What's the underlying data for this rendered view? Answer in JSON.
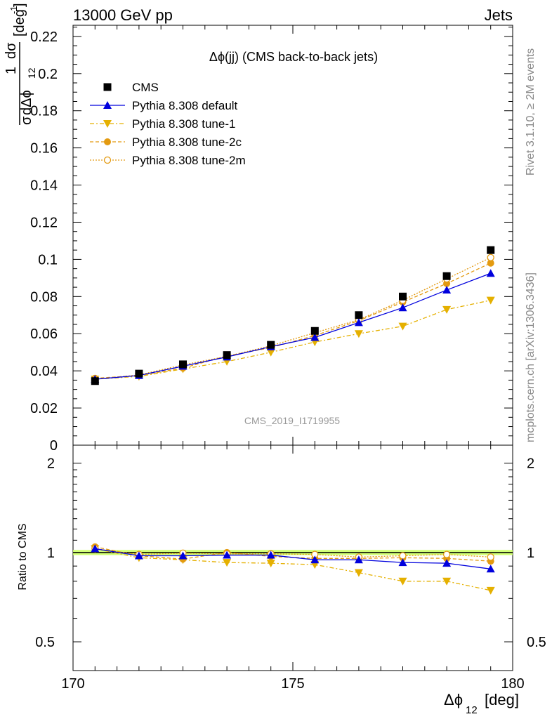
{
  "header": {
    "left": "13000 GeV pp",
    "right": "Jets"
  },
  "side_labels": {
    "rivet": "Rivet 3.1.10, ≥ 2M events",
    "mcplots": "mcplots.cern.ch [arXiv:1306.3436]"
  },
  "watermark": "CMS_2019_I1719955",
  "chart_data": [
    {
      "type": "line",
      "title": "Δϕ(jj) (CMS back-to-back jets)",
      "ylabel": {
        "frac_num": "1",
        "frac_num2": "dσ",
        "frac_den": "σ",
        "frac_den2": "dΔϕ",
        "frac_den_sub": "12",
        "unit": "[deg",
        "unit_sup": "-1",
        "unit_close": "]"
      },
      "xlim": [
        170,
        180
      ],
      "ylim": [
        0,
        0.226
      ],
      "yticks": [
        {
          "v": 0,
          "label": "0"
        },
        {
          "v": 0.02,
          "label": "0.02"
        },
        {
          "v": 0.04,
          "label": "0.04"
        },
        {
          "v": 0.06,
          "label": "0.06"
        },
        {
          "v": 0.08,
          "label": "0.08"
        },
        {
          "v": 0.1,
          "label": "0.1"
        },
        {
          "v": 0.12,
          "label": "0.12"
        },
        {
          "v": 0.14,
          "label": "0.14"
        },
        {
          "v": 0.16,
          "label": "0.16"
        },
        {
          "v": 0.18,
          "label": "0.18"
        },
        {
          "v": 0.2,
          "label": "0.2"
        },
        {
          "v": 0.22,
          "label": "0.22"
        }
      ],
      "x": [
        170.5,
        171.5,
        172.5,
        173.5,
        174.5,
        175.5,
        176.5,
        177.5,
        178.5,
        179.5
      ],
      "series": [
        {
          "name": "CMS",
          "key": "cms",
          "values": [
            0.0345,
            0.0385,
            0.0435,
            0.0485,
            0.054,
            0.0615,
            0.07,
            0.08,
            0.091,
            0.105
          ]
        },
        {
          "name": "Pythia 8.308 default",
          "key": "default",
          "values": [
            0.0355,
            0.0375,
            0.0425,
            0.0475,
            0.053,
            0.058,
            0.066,
            0.074,
            0.0835,
            0.0925
          ]
        },
        {
          "name": "Pythia 8.308 tune-1",
          "key": "tune1",
          "values": [
            0.0355,
            0.037,
            0.041,
            0.045,
            0.05,
            0.0555,
            0.06,
            0.064,
            0.073,
            0.078
          ]
        },
        {
          "name": "Pythia 8.308 tune-2c",
          "key": "tune2c",
          "values": [
            0.036,
            0.0375,
            0.0415,
            0.048,
            0.0525,
            0.059,
            0.067,
            0.077,
            0.087,
            0.098
          ]
        },
        {
          "name": "Pythia 8.308 tune-2m",
          "key": "tune2m",
          "values": [
            0.0355,
            0.0378,
            0.0432,
            0.0478,
            0.0535,
            0.0605,
            0.0675,
            0.078,
            0.0895,
            0.101
          ]
        }
      ],
      "colors": {
        "cms": "#000000",
        "default": "#0000dd",
        "tune1": "#e5b000",
        "tune2c": "#e39a10",
        "tune2m": "#e39a10"
      }
    },
    {
      "type": "line",
      "ylabel": "Ratio to CMS",
      "scale": "log",
      "xlim": [
        170,
        180
      ],
      "ylim": [
        0.4,
        2.3
      ],
      "yticks": [
        {
          "v": 0.5,
          "label": "0.5"
        },
        {
          "v": 1,
          "label": "1"
        },
        {
          "v": 2,
          "label": "2"
        }
      ],
      "xticks": [
        {
          "v": 170,
          "label": "170"
        },
        {
          "v": 175,
          "label": "175"
        },
        {
          "v": 180,
          "label": "180"
        }
      ],
      "xlabel": {
        "main": "Δϕ",
        "sub": "12",
        "unit": "[deg]"
      },
      "x": [
        170.5,
        171.5,
        172.5,
        173.5,
        174.5,
        175.5,
        176.5,
        177.5,
        178.5,
        179.5
      ],
      "series": [
        {
          "name": "Pythia 8.308 default",
          "key": "default",
          "values": [
            1.03,
            0.975,
            0.975,
            0.98,
            0.98,
            0.945,
            0.945,
            0.925,
            0.92,
            0.88
          ]
        },
        {
          "name": "Pythia 8.308 tune-1",
          "key": "tune1",
          "values": [
            1.03,
            0.96,
            0.945,
            0.925,
            0.92,
            0.91,
            0.855,
            0.8,
            0.8,
            0.745
          ]
        },
        {
          "name": "Pythia 8.308 tune-2c",
          "key": "tune2c",
          "values": [
            1.045,
            0.975,
            0.95,
            1.0,
            0.97,
            0.955,
            0.955,
            0.96,
            0.955,
            0.935
          ]
        },
        {
          "name": "Pythia 8.308 tune-2m",
          "key": "tune2m",
          "values": [
            1.03,
            0.985,
            0.995,
            0.99,
            0.99,
            0.985,
            0.965,
            0.975,
            0.985,
            0.965
          ]
        }
      ],
      "band": [
        0.98,
        1.02
      ]
    }
  ]
}
